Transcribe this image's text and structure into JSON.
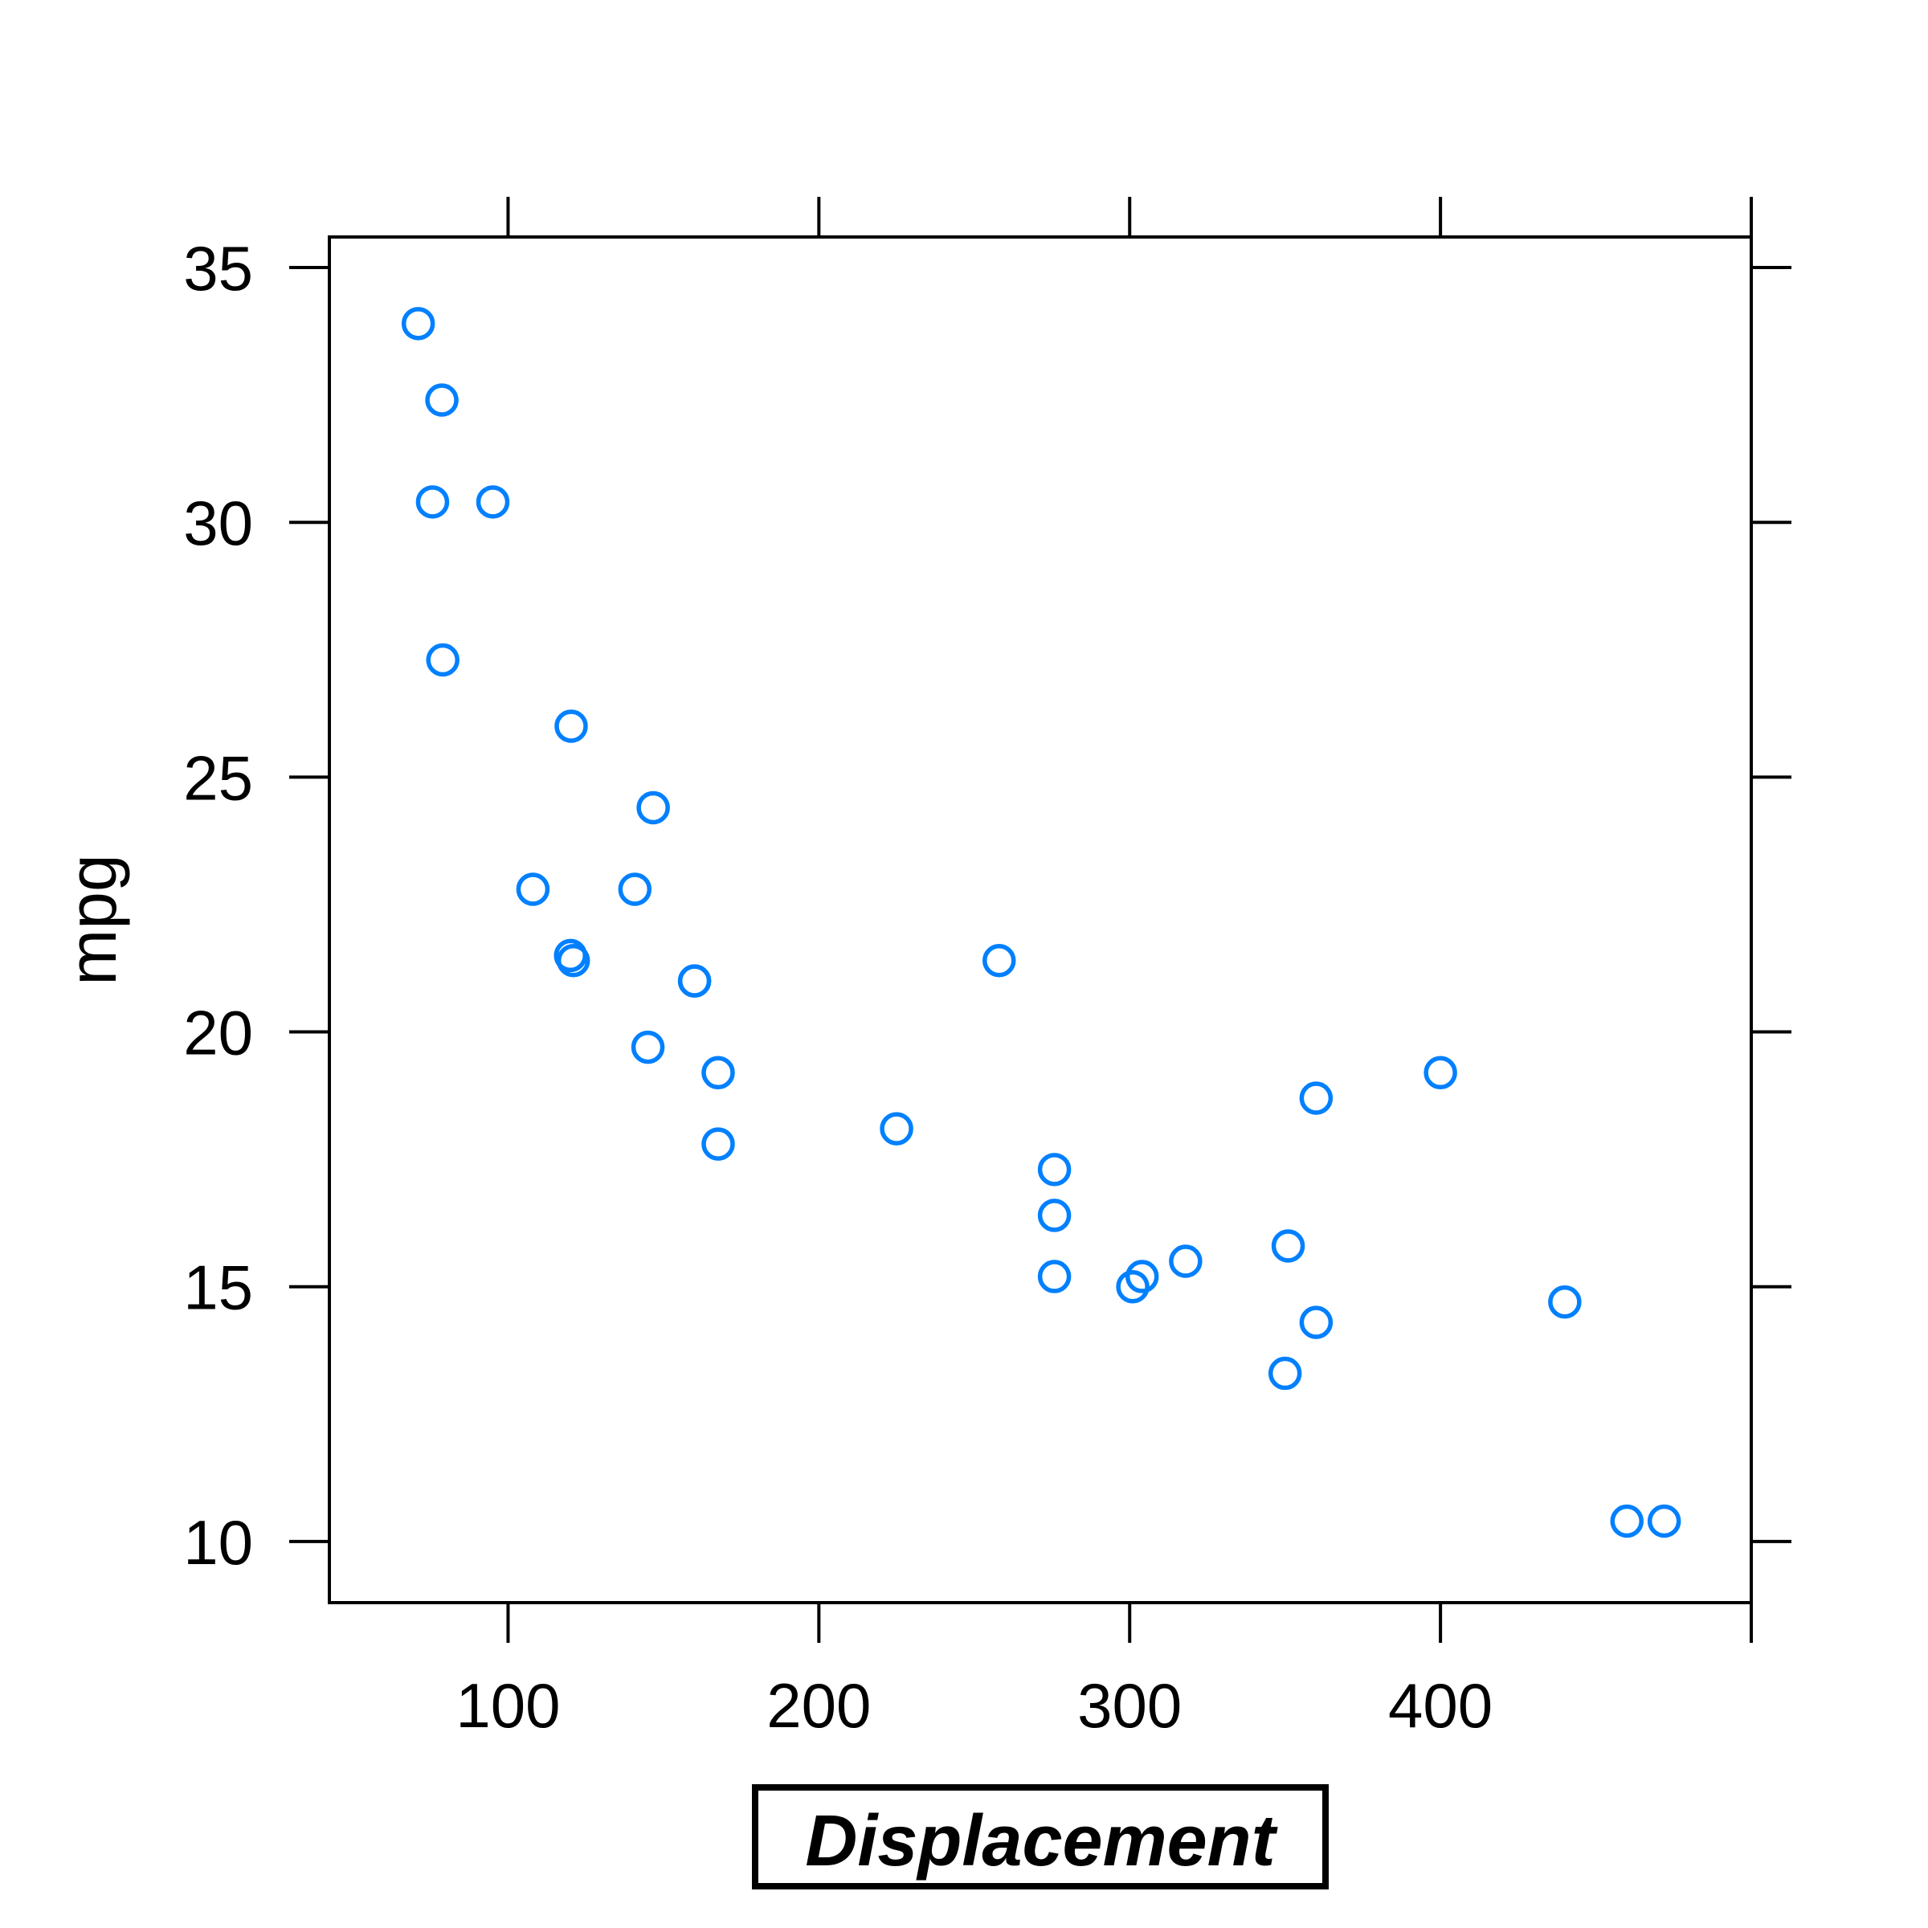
{
  "chart_data": {
    "type": "scatter",
    "title": "",
    "xlabel": "Displacement",
    "ylabel": "mpg",
    "xlim": [
      42.5,
      500
    ],
    "ylim": [
      8.8,
      35.6
    ],
    "x_ticks": [
      100,
      200,
      300,
      400
    ],
    "y_ticks": [
      10,
      15,
      20,
      25,
      30,
      35
    ],
    "x_tick_labels": [
      "100",
      "200",
      "300",
      "400"
    ],
    "y_tick_labels": [
      "10",
      "15",
      "20",
      "25",
      "30",
      "35"
    ],
    "grid": false,
    "marker": "open-circle",
    "point_color": "#0080ff",
    "points": [
      {
        "x": 160,
        "y": 21.0
      },
      {
        "x": 160,
        "y": 21.0
      },
      {
        "x": 108,
        "y": 22.8
      },
      {
        "x": 258,
        "y": 21.4
      },
      {
        "x": 360,
        "y": 18.7
      },
      {
        "x": 225,
        "y": 18.1
      },
      {
        "x": 360,
        "y": 14.3
      },
      {
        "x": 146.7,
        "y": 24.4
      },
      {
        "x": 140.8,
        "y": 22.8
      },
      {
        "x": 167.6,
        "y": 19.2
      },
      {
        "x": 167.6,
        "y": 17.8
      },
      {
        "x": 275.8,
        "y": 16.4
      },
      {
        "x": 275.8,
        "y": 17.3
      },
      {
        "x": 275.8,
        "y": 15.2
      },
      {
        "x": 472,
        "y": 10.4
      },
      {
        "x": 460,
        "y": 10.4
      },
      {
        "x": 440,
        "y": 14.7
      },
      {
        "x": 78.7,
        "y": 32.4
      },
      {
        "x": 75.7,
        "y": 30.4
      },
      {
        "x": 71.1,
        "y": 33.9
      },
      {
        "x": 120.1,
        "y": 21.5
      },
      {
        "x": 318,
        "y": 15.5
      },
      {
        "x": 304,
        "y": 15.2
      },
      {
        "x": 350,
        "y": 13.3
      },
      {
        "x": 400,
        "y": 19.2
      },
      {
        "x": 79,
        "y": 27.3
      },
      {
        "x": 120.3,
        "y": 26.0
      },
      {
        "x": 95.1,
        "y": 30.4
      },
      {
        "x": 351,
        "y": 15.8
      },
      {
        "x": 145,
        "y": 19.7
      },
      {
        "x": 301,
        "y": 15.0
      },
      {
        "x": 121,
        "y": 21.4
      }
    ]
  }
}
